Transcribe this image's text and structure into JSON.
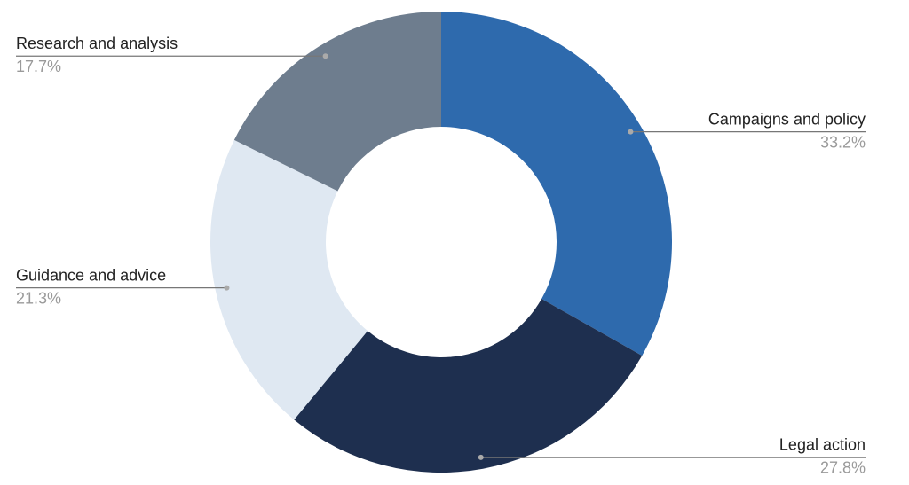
{
  "chart_data": {
    "type": "pie",
    "categories": [
      "Campaigns and policy",
      "Legal action",
      "Guidance and advice",
      "Research and analysis"
    ],
    "values": [
      33.2,
      27.8,
      21.3,
      17.7
    ],
    "value_labels": [
      "33.2%",
      "27.8%",
      "21.3%",
      "17.7%"
    ],
    "colors": [
      "#2e6aad",
      "#1e2f4f",
      "#dfe8f2",
      "#6e7d8e"
    ],
    "donut": true
  }
}
